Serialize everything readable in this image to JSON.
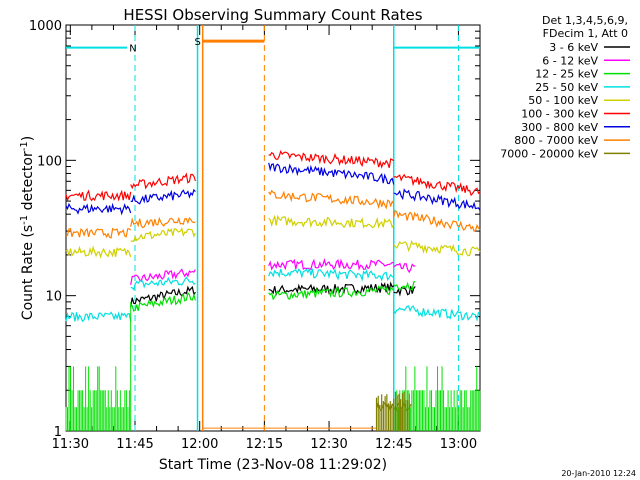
{
  "chart_data": {
    "type": "line",
    "title": "HESSI Observing Summary Count Rates",
    "xlabel": "Start Time (23-Nov-08 11:29:02)",
    "ylabel": "Count Rate (s",
    "ylabel_sup1": "-1",
    "ylabel_mid": " detector",
    "ylabel_sup2": "-1",
    "ylabel_end": ")",
    "y_scale": "log",
    "xlim_minutes": [
      0,
      96
    ],
    "ylim": [
      1,
      1000
    ],
    "x_tick_labels": [
      "11:30",
      "11:45",
      "12:00",
      "12:15",
      "12:30",
      "12:45",
      "13:00"
    ],
    "x_tick_minutes": [
      1,
      16,
      31,
      46,
      61,
      76,
      91
    ],
    "y_tick_labels": [
      "1",
      "10",
      "100",
      "1000"
    ],
    "y_tick_values": [
      1,
      10,
      100,
      1000
    ],
    "legend_header": [
      "Det 1,3,4,5,6,9,",
      "FDecim 1, Att 0"
    ],
    "legend_position": "right",
    "footer_date": "20-Jan-2010 12:24",
    "markers": [
      {
        "label": "N",
        "color": "#00e0e0"
      },
      {
        "label": "S",
        "color": "#ff8000"
      }
    ],
    "gap_minutes": [
      [
        32,
        46
      ]
    ],
    "night_intervals_minutes": [
      [
        0,
        16
      ],
      [
        76,
        91
      ]
    ],
    "saa_interval_minutes": [
      31,
      46
    ],
    "series": [
      {
        "name": "3 - 6 keV",
        "color": "#000000",
        "values_by_segment": [
          {
            "x": [
              0,
              15
            ],
            "y": [
              0,
              0
            ]
          },
          {
            "x": [
              15,
              30
            ],
            "y": [
              9,
              11
            ]
          },
          {
            "x": [
              47,
              76
            ],
            "y": [
              11,
              11.5
            ]
          },
          {
            "x": [
              76,
              81
            ],
            "y": [
              11,
              11
            ]
          }
        ]
      },
      {
        "name": "6 - 12 keV",
        "color": "#ff00ff",
        "values_by_segment": [
          {
            "x": [
              15,
              30
            ],
            "y": [
              13,
              15
            ]
          },
          {
            "x": [
              47,
              76
            ],
            "y": [
              17,
              17
            ]
          },
          {
            "x": [
              76,
              81
            ],
            "y": [
              16,
              16
            ]
          }
        ]
      },
      {
        "name": "12 - 25 keV",
        "color": "#00e000",
        "values_by_segment": [
          {
            "x": [
              15,
              30
            ],
            "y": [
              8,
              10
            ]
          },
          {
            "x": [
              47,
              76
            ],
            "y": [
              10,
              11
            ]
          },
          {
            "x": [
              76,
              81
            ],
            "y": [
              12,
              12
            ]
          }
        ]
      },
      {
        "name": "25 - 50 keV",
        "color": "#00e0e0",
        "values_by_segment": [
          {
            "x": [
              0,
              15
            ],
            "y": [
              7,
              7
            ]
          },
          {
            "x": [
              15,
              30
            ],
            "y": [
              12,
              13
            ]
          },
          {
            "x": [
              47,
              76
            ],
            "y": [
              15,
              14
            ]
          },
          {
            "x": [
              76,
              96
            ],
            "y": [
              8,
              7
            ]
          }
        ]
      },
      {
        "name": "50 - 100 keV",
        "color": "#d0d000",
        "values_by_segment": [
          {
            "x": [
              0,
              15
            ],
            "y": [
              21,
              21
            ]
          },
          {
            "x": [
              15,
              30
            ],
            "y": [
              27,
              30
            ]
          },
          {
            "x": [
              47,
              76
            ],
            "y": [
              36,
              34
            ]
          },
          {
            "x": [
              76,
              96
            ],
            "y": [
              24,
              21
            ]
          }
        ]
      },
      {
        "name": "100 - 300 keV",
        "color": "#ff0000",
        "values_by_segment": [
          {
            "x": [
              0,
              15
            ],
            "y": [
              55,
              55
            ]
          },
          {
            "x": [
              15,
              30
            ],
            "y": [
              65,
              75
            ]
          },
          {
            "x": [
              47,
              76
            ],
            "y": [
              110,
              95
            ]
          },
          {
            "x": [
              76,
              96
            ],
            "y": [
              75,
              58
            ]
          }
        ]
      },
      {
        "name": "300 - 800 keV",
        "color": "#0000e0",
        "values_by_segment": [
          {
            "x": [
              0,
              15
            ],
            "y": [
              44,
              44
            ]
          },
          {
            "x": [
              15,
              30
            ],
            "y": [
              50,
              57
            ]
          },
          {
            "x": [
              47,
              76
            ],
            "y": [
              90,
              72
            ]
          },
          {
            "x": [
              76,
              96
            ],
            "y": [
              58,
              45
            ]
          }
        ]
      },
      {
        "name": "800 - 7000 keV",
        "color": "#ff8000",
        "values_by_segment": [
          {
            "x": [
              0,
              15
            ],
            "y": [
              29,
              29
            ]
          },
          {
            "x": [
              15,
              30
            ],
            "y": [
              34,
              37
            ]
          },
          {
            "x": [
              47,
              76
            ],
            "y": [
              56,
              48
            ]
          },
          {
            "x": [
              76,
              96
            ],
            "y": [
              40,
              31
            ]
          }
        ]
      },
      {
        "name": "7000 - 20000 keV",
        "color": "#808000",
        "values_by_segment": [
          {
            "x": [
              72,
              80
            ],
            "y": [
              1.5,
              1.5
            ]
          }
        ]
      }
    ]
  }
}
